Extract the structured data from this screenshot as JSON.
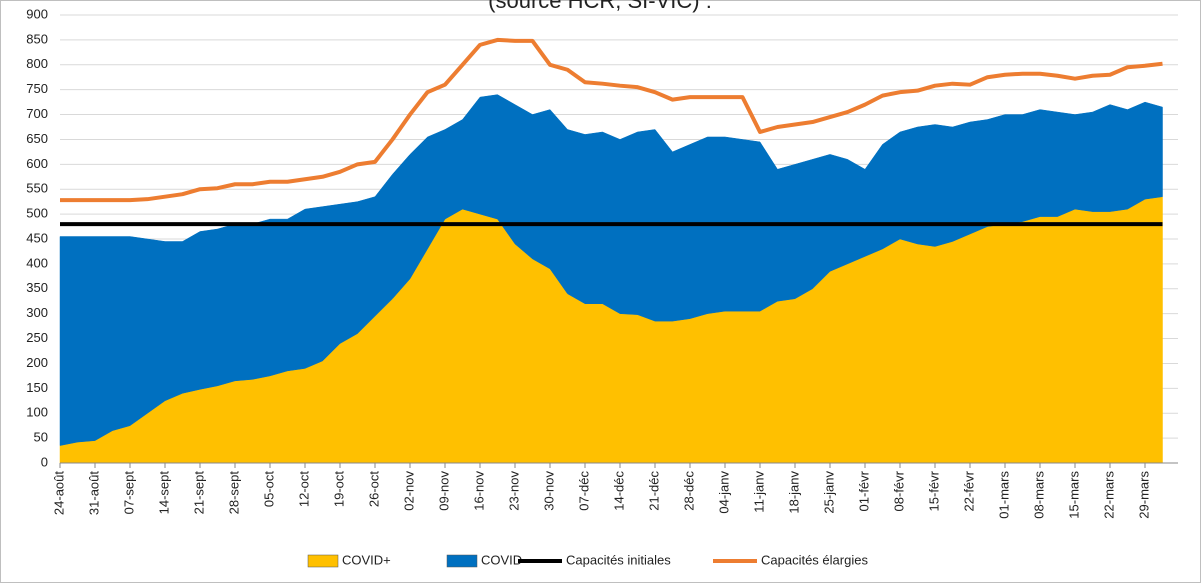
{
  "chart_data": {
    "type": "stacked-area-line",
    "title": "(source HCR, SI-VIC) :",
    "categories": [
      "24-août",
      null,
      "31-août",
      null,
      "07-sept",
      null,
      "14-sept",
      null,
      "21-sept",
      null,
      "28-sept",
      null,
      "05-oct",
      null,
      "12-oct",
      null,
      "19-oct",
      null,
      "26-oct",
      null,
      "02-nov",
      null,
      "09-nov",
      null,
      "16-nov",
      null,
      "23-nov",
      null,
      "30-nov",
      null,
      "07-déc",
      null,
      "14-déc",
      null,
      "21-déc",
      null,
      "28-déc",
      null,
      "04-janv",
      null,
      "11-janv",
      null,
      "18-janv",
      null,
      "25-janv",
      null,
      "01-févr",
      null,
      "08-févr",
      null,
      "15-févr",
      null,
      "22-févr",
      null,
      "01-mars",
      null,
      "08-mars",
      null,
      "15-mars",
      null,
      "22-mars",
      null,
      "29-mars",
      null
    ],
    "series": [
      {
        "name": "COVID+",
        "kind": "area",
        "color": "#ffc000",
        "values": [
          35,
          42,
          45,
          65,
          75,
          100,
          125,
          140,
          148,
          155,
          165,
          168,
          175,
          185,
          190,
          205,
          240,
          260,
          295,
          330,
          370,
          430,
          490,
          510,
          500,
          490,
          440,
          410,
          390,
          340,
          320,
          320,
          300,
          298,
          285,
          285,
          290,
          300,
          305,
          305,
          305,
          325,
          330,
          350,
          385,
          400,
          415,
          430,
          450,
          440,
          435,
          445,
          460,
          475,
          480,
          485,
          495,
          495,
          510,
          505,
          505,
          510,
          530,
          535
        ]
      },
      {
        "name": "COVID-",
        "kind": "area",
        "color": "#0070c0",
        "values": [
          420,
          413,
          410,
          390,
          380,
          350,
          320,
          305,
          317,
          315,
          315,
          312,
          315,
          305,
          320,
          310,
          280,
          265,
          240,
          250,
          250,
          225,
          180,
          180,
          235,
          250,
          280,
          290,
          320,
          330,
          340,
          345,
          350,
          367,
          385,
          340,
          350,
          355,
          350,
          345,
          340,
          265,
          270,
          260,
          235,
          210,
          175,
          210,
          215,
          235,
          245,
          230,
          225,
          215,
          220,
          215,
          215,
          210,
          190,
          200,
          215,
          200,
          195,
          180
        ]
      },
      {
        "name": "Capacités initiales",
        "kind": "line",
        "color": "#000000",
        "values": [
          480,
          480,
          480,
          480,
          480,
          480,
          480,
          480,
          480,
          480,
          480,
          480,
          480,
          480,
          480,
          480,
          480,
          480,
          480,
          480,
          480,
          480,
          480,
          480,
          480,
          480,
          480,
          480,
          480,
          480,
          480,
          480,
          480,
          480,
          480,
          480,
          480,
          480,
          480,
          480,
          480,
          480,
          480,
          480,
          480,
          480,
          480,
          480,
          480,
          480,
          480,
          480,
          480,
          480,
          480,
          480,
          480,
          480,
          480,
          480,
          480,
          480,
          480,
          480
        ]
      },
      {
        "name": "Capacités élargies",
        "kind": "line",
        "color": "#ed7d31",
        "values": [
          528,
          528,
          528,
          528,
          528,
          530,
          535,
          540,
          550,
          552,
          560,
          560,
          565,
          565,
          570,
          575,
          585,
          600,
          605,
          650,
          700,
          745,
          760,
          800,
          840,
          850,
          848,
          848,
          800,
          790,
          765,
          762,
          758,
          755,
          745,
          730,
          735,
          735,
          735,
          735,
          665,
          675,
          680,
          685,
          695,
          705,
          720,
          738,
          745,
          748,
          758,
          762,
          760,
          775,
          780,
          782,
          782,
          778,
          772,
          778,
          780,
          795,
          798,
          802
        ]
      }
    ],
    "ylim": [
      0,
      900
    ],
    "yticks": [
      0,
      50,
      100,
      150,
      200,
      250,
      300,
      350,
      400,
      450,
      500,
      550,
      600,
      650,
      700,
      750,
      800,
      850,
      900
    ],
    "grid": true
  }
}
